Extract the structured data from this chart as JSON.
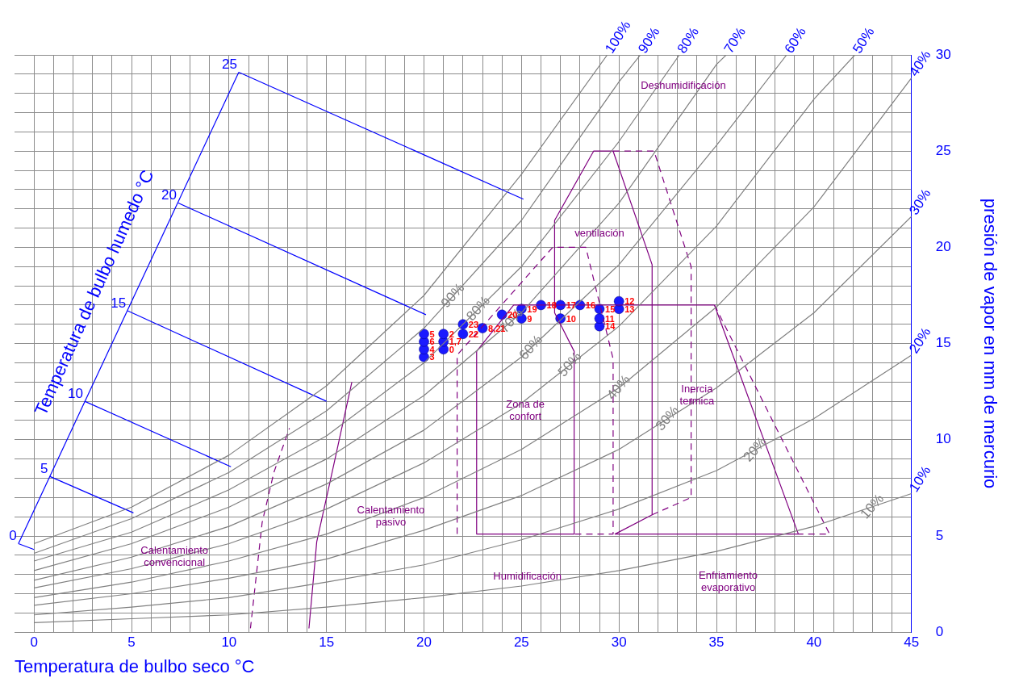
{
  "chart_data": {
    "type": "scatter",
    "xlabel": "Temperatura de bulbo seco °C",
    "ylabel": "presión de vapor en mm de mercurio",
    "y2label": "Temperatura de bulbo humedo °C",
    "xlim": [
      -1,
      45
    ],
    "xticks": [
      0,
      {
        "value": 1,
        "label": null
      },
      {
        "value": 2,
        "label": null
      },
      {
        "value": 3,
        "label": null
      },
      {
        "value": 4,
        "label": null
      },
      5,
      {
        "value": 6,
        "label": null
      },
      {
        "value": 7,
        "label": null
      },
      {
        "value": 8,
        "label": null
      },
      {
        "value": 9,
        "label": null
      },
      10,
      {
        "value": 11,
        "label": null
      },
      {
        "value": 12,
        "label": null
      },
      {
        "value": 13,
        "label": null
      },
      {
        "value": 14,
        "label": null
      },
      15,
      {
        "value": 16,
        "label": null
      },
      {
        "value": 17,
        "label": null
      },
      {
        "value": 18,
        "label": null
      },
      {
        "value": 19,
        "label": null
      },
      20,
      {
        "value": 21,
        "label": null
      },
      {
        "value": 22,
        "label": null
      },
      {
        "value": 23,
        "label": null
      },
      {
        "value": 24,
        "label": null
      },
      25,
      {
        "value": 26,
        "label": null
      },
      {
        "value": 27,
        "label": null
      },
      {
        "value": 28,
        "label": null
      },
      {
        "value": 29,
        "label": null
      },
      30,
      {
        "value": 31,
        "label": null
      },
      {
        "value": 32,
        "label": null
      },
      {
        "value": 33,
        "label": null
      },
      {
        "value": 34,
        "label": null
      },
      35,
      {
        "value": 36,
        "label": null
      },
      {
        "value": 37,
        "label": null
      },
      {
        "value": 38,
        "label": null
      },
      {
        "value": 39,
        "label": null
      },
      40,
      {
        "value": 41,
        "label": null
      },
      {
        "value": 42,
        "label": null
      },
      {
        "value": 43,
        "label": null
      },
      {
        "value": 44,
        "label": null
      },
      45
    ],
    "ylim": [
      0,
      30
    ],
    "yticks": [
      0,
      {
        "value": 1,
        "label": null
      },
      {
        "value": 2,
        "label": null
      },
      {
        "value": 3,
        "label": null
      },
      {
        "value": 4,
        "label": null
      },
      5,
      {
        "value": 6,
        "label": null
      },
      {
        "value": 7,
        "label": null
      },
      {
        "value": 8,
        "label": null
      },
      {
        "value": 9,
        "label": null
      },
      10,
      {
        "value": 11,
        "label": null
      },
      {
        "value": 12,
        "label": null
      },
      {
        "value": 13,
        "label": null
      },
      {
        "value": 14,
        "label": null
      },
      15,
      {
        "value": 16,
        "label": null
      },
      {
        "value": 17,
        "label": null
      },
      {
        "value": 18,
        "label": null
      },
      {
        "value": 19,
        "label": null
      },
      20,
      {
        "value": 21,
        "label": null
      },
      {
        "value": 22,
        "label": null
      },
      {
        "value": 23,
        "label": null
      },
      {
        "value": 24,
        "label": null
      },
      25,
      {
        "value": 26,
        "label": null
      },
      {
        "value": 27,
        "label": null
      },
      {
        "value": 28,
        "label": null
      },
      {
        "value": 29,
        "label": null
      },
      30
    ],
    "grid": true,
    "series": [
      {
        "type": "line",
        "marker": "none",
        "color": "#808080",
        "x": [
          0,
          5,
          10,
          15,
          20,
          25,
          29.4
        ],
        "values": [
          4.6,
          6.5,
          9.2,
          12.8,
          17.5,
          23.8,
          30
        ]
      },
      {
        "name": "90%",
        "type": "line",
        "marker": "none",
        "color": "#808080",
        "x": [
          0,
          5,
          10,
          15,
          20,
          25,
          30,
          31.1
        ],
        "values": [
          4.1,
          5.9,
          8.3,
          11.5,
          15.8,
          21.4,
          28.6,
          30
        ]
      },
      {
        "name": "80%",
        "type": "line",
        "marker": "none",
        "color": "#808080",
        "x": [
          0,
          5,
          10,
          15,
          20,
          25,
          30,
          33.1
        ],
        "values": [
          3.7,
          5.2,
          7.4,
          10.2,
          14.0,
          19.0,
          25.5,
          30
        ]
      },
      {
        "name": "70%",
        "type": "line",
        "marker": "none",
        "color": "#808080",
        "x": [
          0,
          5,
          10,
          15,
          20,
          25,
          30,
          35,
          35.5
        ],
        "values": [
          3.2,
          4.6,
          6.5,
          9.0,
          12.3,
          16.6,
          22.3,
          29.5,
          30
        ]
      },
      {
        "name": "60%",
        "type": "line",
        "marker": "none",
        "color": "#808080",
        "x": [
          0,
          5,
          10,
          15,
          20,
          25,
          30,
          35,
          38.6
        ],
        "values": [
          2.7,
          3.9,
          5.5,
          7.7,
          10.5,
          14.3,
          19.1,
          25.3,
          30
        ]
      },
      {
        "name": "50%",
        "type": "line",
        "marker": "none",
        "color": "#808080",
        "x": [
          0,
          5,
          10,
          15,
          20,
          25,
          30,
          35,
          40,
          42.1
        ],
        "values": [
          2.3,
          3.3,
          4.6,
          6.4,
          8.8,
          11.9,
          15.9,
          21.1,
          27.7,
          30
        ]
      },
      {
        "name": "40%",
        "type": "line",
        "marker": "none",
        "color": "#808080",
        "x": [
          0,
          5,
          10,
          15,
          20,
          25,
          30,
          35,
          40,
          45
        ],
        "values": [
          1.8,
          2.6,
          3.7,
          5.1,
          7.0,
          9.5,
          12.7,
          16.9,
          22.1,
          28.8
        ]
      },
      {
        "name": "30%",
        "type": "line",
        "marker": "none",
        "color": "#808080",
        "x": [
          0,
          5,
          10,
          15,
          20,
          25,
          30,
          35,
          40,
          45
        ],
        "values": [
          1.4,
          2.0,
          2.8,
          3.8,
          5.3,
          7.1,
          9.5,
          12.7,
          16.6,
          21.6
        ]
      },
      {
        "name": "20%",
        "type": "line",
        "marker": "none",
        "color": "#808080",
        "x": [
          0,
          5,
          10,
          15,
          20,
          25,
          30,
          35,
          40,
          45
        ],
        "values": [
          0.9,
          1.3,
          1.8,
          2.6,
          3.5,
          4.8,
          6.4,
          8.4,
          11.1,
          14.4
        ]
      },
      {
        "name": "10%",
        "type": "line",
        "marker": "none",
        "color": "#808080",
        "x": [
          0,
          5,
          10,
          15,
          20,
          25,
          30,
          35,
          40,
          45
        ],
        "values": [
          0.5,
          0.7,
          0.9,
          1.3,
          1.8,
          2.4,
          3.2,
          4.2,
          5.5,
          7.2
        ]
      },
      {
        "type": "line",
        "marker": "none",
        "color": "#0000ff",
        "x": [
          -0.8,
          10.5
        ],
        "values": [
          4.6,
          29.1
        ]
      },
      {
        "name": "25",
        "type": "line",
        "marker": "none",
        "color": "#0000ff",
        "x": [
          25.1,
          10.5
        ],
        "values": [
          22.5,
          29.1
        ]
      },
      {
        "name": "20",
        "type": "line",
        "marker": "none",
        "color": "#0000ff",
        "x": [
          20.1,
          7.4
        ],
        "values": [
          16.5,
          22.3
        ]
      },
      {
        "name": "15",
        "type": "line",
        "marker": "none",
        "color": "#0000ff",
        "x": [
          15.0,
          4.8
        ],
        "values": [
          12.0,
          16.7
        ]
      },
      {
        "name": "10",
        "type": "line",
        "marker": "none",
        "color": "#0000ff",
        "x": [
          10.1,
          2.6
        ],
        "values": [
          8.6,
          12.0
        ]
      },
      {
        "name": "5",
        "type": "line",
        "marker": "none",
        "color": "#0000ff",
        "x": [
          5.1,
          0.8
        ],
        "values": [
          6.2,
          8.1
        ]
      },
      {
        "name": "0",
        "type": "line",
        "marker": "none",
        "color": "#0000ff",
        "x": [
          0,
          -0.8
        ],
        "values": [
          4.3,
          4.6
        ]
      },
      {
        "type": "line",
        "marker": "none",
        "color": "#800080",
        "x": [
          22.7,
          22.7,
          27.7,
          27.7,
          26.7,
          26.7,
          28.7,
          29.7,
          31.7,
          31.7,
          29.8,
          39.2,
          34.9
        ],
        "values": [
          14.6,
          5.1,
          5.1,
          14.6,
          16.6,
          21.4,
          25.0,
          25.0,
          19.1,
          6.1,
          5.1,
          5.1,
          17.0
        ]
      },
      {
        "type": "line",
        "marker": "none",
        "color": "#800080",
        "x": [
          34.9,
          24.6,
          22.7
        ],
        "values": [
          17.0,
          17.0,
          14.6
        ]
      },
      {
        "type": "line",
        "marker": "none",
        "line_style": "dashed",
        "color": "#800080",
        "x": [
          21.7,
          21.7,
          26.6,
          28.3,
          29.7,
          29.7,
          27.7
        ],
        "values": [
          5.1,
          14.4,
          20.0,
          20.0,
          14.2,
          5.1,
          5.1
        ]
      },
      {
        "type": "line",
        "marker": "none",
        "line_style": "dashed",
        "color": "#800080",
        "x": [
          29.7,
          31.8,
          33.7,
          33.7,
          31.7
        ],
        "values": [
          25.0,
          25.0,
          19.0,
          7.0,
          6.1
        ]
      },
      {
        "type": "line",
        "marker": "none",
        "line_style": "dashed",
        "color": "#800080",
        "x": [
          34.9,
          40.8,
          39.2
        ],
        "values": [
          17.0,
          5.1,
          5.1
        ]
      },
      {
        "type": "line",
        "marker": "none",
        "color": "#800080",
        "x": [
          14.1,
          14.5,
          15.2,
          16.3
        ],
        "values": [
          0.2,
          4.7,
          7.9,
          13.0
        ]
      },
      {
        "type": "line",
        "marker": "none",
        "line_style": "dashed",
        "color": "#800080",
        "x": [
          11.1,
          11.7,
          12.3,
          13.1
        ],
        "values": [
          0.2,
          5.7,
          8.3,
          10.6
        ]
      },
      {
        "name": "5",
        "marker": "circle",
        "color": "#1a1aff",
        "x": [
          20
        ],
        "values": [
          15.5
        ]
      },
      {
        "name": "6",
        "marker": "circle",
        "color": "#1a1aff",
        "x": [
          20
        ],
        "values": [
          15.1
        ]
      },
      {
        "name": "4",
        "marker": "circle",
        "color": "#1a1aff",
        "x": [
          20
        ],
        "values": [
          14.7
        ]
      },
      {
        "name": "3",
        "marker": "circle",
        "color": "#1a1aff",
        "x": [
          20
        ],
        "values": [
          14.3
        ]
      },
      {
        "name": "2",
        "marker": "circle",
        "color": "#1a1aff",
        "x": [
          21
        ],
        "values": [
          15.5
        ]
      },
      {
        "name": "1,7",
        "marker": "circle",
        "color": "#1a1aff",
        "x": [
          21
        ],
        "values": [
          15.1
        ]
      },
      {
        "name": "0",
        "marker": "circle",
        "color": "#1a1aff",
        "x": [
          21
        ],
        "values": [
          14.7
        ]
      },
      {
        "name": "23",
        "marker": "circle",
        "color": "#1a1aff",
        "x": [
          22
        ],
        "values": [
          16.0
        ]
      },
      {
        "name": "22",
        "marker": "circle",
        "color": "#1a1aff",
        "x": [
          22
        ],
        "values": [
          15.5
        ]
      },
      {
        "name": "8,21",
        "marker": "circle",
        "color": "#1a1aff",
        "x": [
          23
        ],
        "values": [
          15.8
        ]
      },
      {
        "name": "20",
        "marker": "circle",
        "color": "#1a1aff",
        "x": [
          24
        ],
        "values": [
          16.5
        ]
      },
      {
        "name": "19",
        "marker": "circle",
        "color": "#1a1aff",
        "x": [
          25
        ],
        "values": [
          16.8
        ]
      },
      {
        "name": "9",
        "marker": "circle",
        "color": "#1a1aff",
        "x": [
          25
        ],
        "values": [
          16.3
        ]
      },
      {
        "name": "18",
        "marker": "circle",
        "color": "#1a1aff",
        "x": [
          26
        ],
        "values": [
          17.0
        ]
      },
      {
        "name": "17",
        "marker": "circle",
        "color": "#1a1aff",
        "x": [
          27
        ],
        "values": [
          17.0
        ]
      },
      {
        "name": "10",
        "marker": "circle",
        "color": "#1a1aff",
        "x": [
          27
        ],
        "values": [
          16.3
        ]
      },
      {
        "name": "16",
        "marker": "circle",
        "color": "#1a1aff",
        "x": [
          28
        ],
        "values": [
          17.0
        ]
      },
      {
        "name": "15",
        "marker": "circle",
        "color": "#1a1aff",
        "x": [
          29
        ],
        "values": [
          16.8
        ]
      },
      {
        "name": "11",
        "marker": "circle",
        "color": "#1a1aff",
        "x": [
          29
        ],
        "values": [
          16.3
        ]
      },
      {
        "name": "14",
        "marker": "circle",
        "color": "#1a1aff",
        "x": [
          29
        ],
        "values": [
          15.9
        ]
      },
      {
        "name": "12",
        "marker": "circle",
        "color": "#1a1aff",
        "x": [
          30
        ],
        "values": [
          17.2
        ]
      },
      {
        "name": "13",
        "marker": "circle",
        "color": "#1a1aff",
        "x": [
          30
        ],
        "values": [
          16.8
        ]
      }
    ],
    "annotations": [
      "Deshumidificación",
      "ventilación",
      "Zona de\nconfort",
      "Inercia\ntermica",
      "Calentamiento\npasivo",
      "Calentamiento\nconvencional",
      "Humidificación",
      "Enfriamiento\nevaporativo",
      {
        "text": "100%",
        "x": 29.4,
        "y": 30
      },
      {
        "text": "90%",
        "x": 31.1,
        "y": 30
      },
      {
        "text": "80%",
        "x": 33.1,
        "y": 30
      },
      {
        "text": "70%",
        "x": 35.5,
        "y": 30
      },
      {
        "text": "60%",
        "x": 38.6,
        "y": 30
      },
      {
        "text": "50%",
        "x": 42.1,
        "y": 30
      },
      {
        "text": "40%",
        "x": 45,
        "y": 28.8
      },
      {
        "text": "30%",
        "x": 45,
        "y": 21.6
      },
      {
        "text": "20%",
        "x": 45,
        "y": 14.4
      },
      {
        "text": "10%",
        "x": 45,
        "y": 7.2
      }
    ]
  }
}
